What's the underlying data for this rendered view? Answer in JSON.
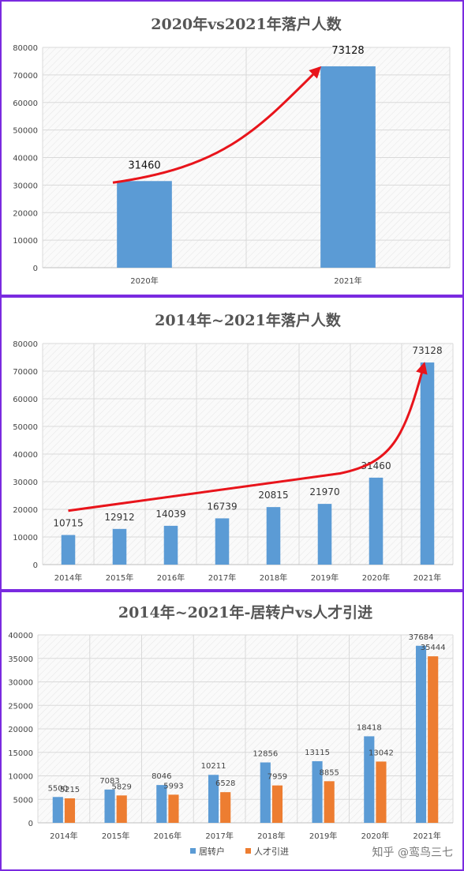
{
  "colors": {
    "blue": "#5b9bd5",
    "orange": "#ed7d31",
    "arrow": "#e8141b",
    "border": "#7a2ae0"
  },
  "watermark": "知乎 @鸾鸟三七",
  "chart_data": [
    {
      "type": "bar",
      "title": "2020年vs2021年落户人数",
      "categories": [
        "2020年",
        "2021年"
      ],
      "values": [
        31460,
        73128
      ],
      "data_labels": [
        "31460",
        "73128"
      ],
      "ylim": [
        0,
        80000
      ],
      "yticks": [
        "0",
        "10000",
        "20000",
        "30000",
        "40000",
        "50000",
        "60000",
        "70000",
        "80000"
      ],
      "grid": true,
      "annotation": "red upward trend arrow from 2020年 to 2021年"
    },
    {
      "type": "bar",
      "title": "2014年~2021年落户人数",
      "categories": [
        "2014年",
        "2015年",
        "2016年",
        "2017年",
        "2018年",
        "2019年",
        "2020年",
        "2021年"
      ],
      "values": [
        10715,
        12912,
        14039,
        16739,
        20815,
        21970,
        31460,
        73128
      ],
      "data_labels": [
        "10715",
        "12912",
        "14039",
        "16739",
        "20815",
        "21970",
        "31460",
        "73128"
      ],
      "ylim": [
        0,
        80000
      ],
      "yticks": [
        "0",
        "10000",
        "20000",
        "30000",
        "40000",
        "50000",
        "60000",
        "70000",
        "80000"
      ],
      "grid": true,
      "annotation": "red upward trend arrow from 2014年 to 2021年"
    },
    {
      "type": "bar",
      "title": "2014年~2021年-居转户vs人才引进",
      "categories": [
        "2014年",
        "2015年",
        "2016年",
        "2017年",
        "2018年",
        "2019年",
        "2020年",
        "2021年"
      ],
      "series": [
        {
          "name": "居转户",
          "values": [
            5500,
            7083,
            8046,
            10211,
            12856,
            13115,
            18418,
            37684
          ],
          "data_labels": [
            "5500",
            "7083",
            "8046",
            "10211",
            "12856",
            "13115",
            "18418",
            "37684"
          ]
        },
        {
          "name": "人才引进",
          "values": [
            5215,
            5829,
            5993,
            6528,
            7959,
            8855,
            13042,
            35444
          ],
          "data_labels": [
            "5215",
            "5829",
            "5993",
            "6528",
            "7959",
            "8855",
            "13042",
            "35444"
          ]
        }
      ],
      "ylim": [
        0,
        40000
      ],
      "yticks": [
        "0",
        "5000",
        "10000",
        "15000",
        "20000",
        "25000",
        "30000",
        "35000",
        "40000"
      ],
      "grid": true,
      "legend": "bottom"
    }
  ]
}
